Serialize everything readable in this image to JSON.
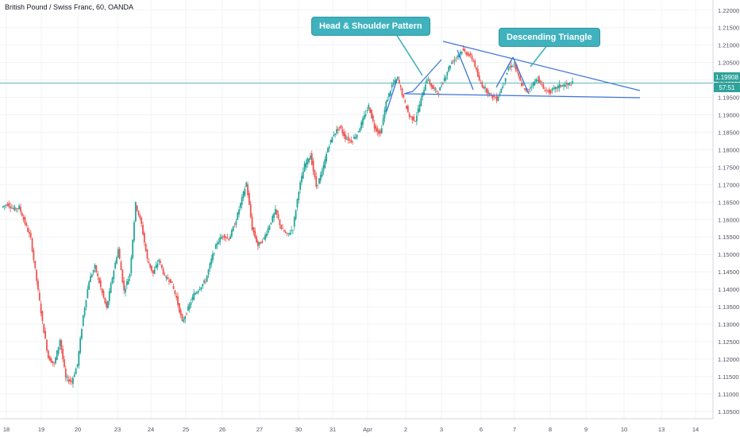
{
  "symbol": {
    "title": "British Pound / Swiss Franc, 60, OANDA"
  },
  "annotations": {
    "head_shoulder": "Head & Shoulder Pattern",
    "descending_triangle": "Descending Triangle"
  },
  "price_axis": {
    "current_price": "1.19908",
    "countdown": "57:51"
  },
  "colors": {
    "up": "#26a69a",
    "down": "#ef5350",
    "trendline": "#3d74d9",
    "callout": "#3fb2be",
    "current_price_line": "#2ea39a",
    "grid": "#f0f3f7"
  },
  "chart_data": {
    "type": "candlestick",
    "timeframe": "60",
    "y_ticks": [
      "1.22000",
      "1.21500",
      "1.21000",
      "1.20500",
      "1.20000",
      "1.19500",
      "1.19000",
      "1.18500",
      "1.18000",
      "1.17500",
      "1.17000",
      "1.16500",
      "1.16000",
      "1.15500",
      "1.15000",
      "1.14500",
      "1.14000",
      "1.13500",
      "1.13000",
      "1.12500",
      "1.12000",
      "1.11500",
      "1.11000",
      "1.10500"
    ],
    "ylim": [
      1.102,
      1.222
    ],
    "x_ticks": [
      "18",
      "19",
      "20",
      "23",
      "24",
      "25",
      "26",
      "27",
      "30",
      "31",
      "Apr",
      "2",
      "3",
      "6",
      "7",
      "8",
      "9",
      "10",
      "13",
      "14"
    ],
    "current_price": 1.19908,
    "trendlines": [
      {
        "name": "descending-upper",
        "from": {
          "day": "3",
          "price": 1.209
        },
        "to": {
          "day": "10",
          "price": 1.1935
        }
      },
      {
        "name": "support-lower",
        "from": {
          "day": "2",
          "price": 1.1925
        },
        "to": {
          "day": "10",
          "price": 1.1915
        }
      }
    ],
    "price_path": [
      1.1635,
      1.1645,
      1.163,
      1.1635,
      1.159,
      1.1545,
      1.1425,
      1.1305,
      1.1205,
      1.1185,
      1.1255,
      1.1145,
      1.1135,
      1.1185,
      1.1325,
      1.1425,
      1.1465,
      1.1405,
      1.1345,
      1.1435,
      1.1515,
      1.1395,
      1.1445,
      1.1645,
      1.1585,
      1.1485,
      1.1445,
      1.1485,
      1.1435,
      1.1425,
      1.1375,
      1.1305,
      1.1345,
      1.1385,
      1.1405,
      1.1425,
      1.1485,
      1.1535,
      1.1555,
      1.1545,
      1.1585,
      1.1645,
      1.1705,
      1.1575,
      1.1525,
      1.1545,
      1.1585,
      1.1625,
      1.1575,
      1.1555,
      1.1575,
      1.1685,
      1.1755,
      1.1785,
      1.1695,
      1.1735,
      1.1805,
      1.1845,
      1.1865,
      1.1835,
      1.1825,
      1.1845,
      1.1885,
      1.1925,
      1.1865,
      1.1845,
      1.1935,
      1.1985,
      1.2005,
      1.1945,
      1.1895,
      1.1885,
      1.1945,
      1.2005,
      1.1975,
      1.1965,
      1.2005,
      1.2045,
      1.2065,
      1.2085,
      1.2075,
      1.2055,
      1.1995,
      1.1975,
      1.1955,
      1.1945,
      1.1985,
      1.2035,
      1.2045,
      1.1995,
      1.1965,
      1.1985,
      1.2005,
      1.1975,
      1.1965,
      1.1975,
      1.1985,
      1.1985,
      1.1991
    ]
  }
}
